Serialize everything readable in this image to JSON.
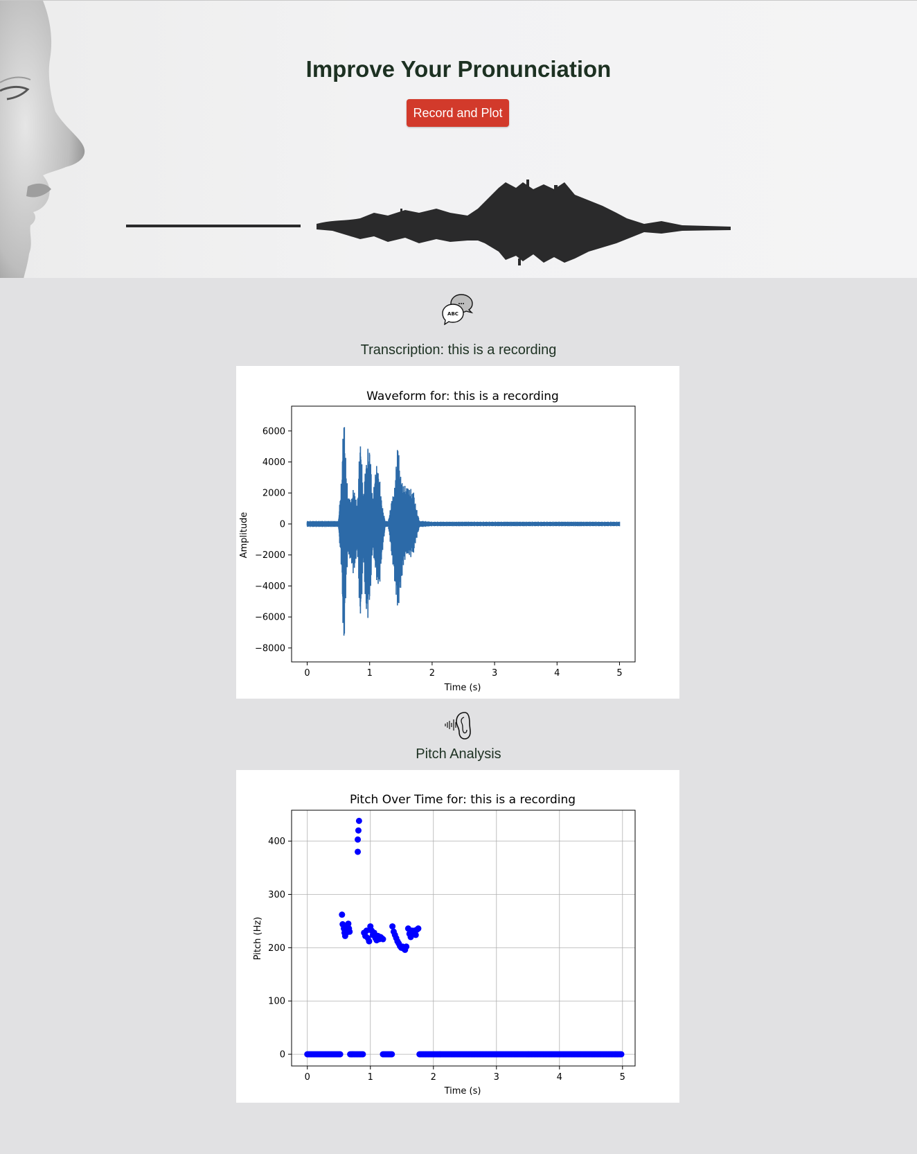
{
  "hero": {
    "title": "Improve Your Pronunciation",
    "record_button_label": "Record and Plot"
  },
  "transcription": {
    "icon": "speech-bubbles-abc-icon",
    "label": "Transcription: this is a recording"
  },
  "pitch_section": {
    "icon": "ear-soundwave-icon",
    "label": "Pitch Analysis"
  },
  "colors": {
    "accent_button": "#d23a2b",
    "heading_text": "#1d3122",
    "waveform_line": "#2c6aa8",
    "pitch_points": "#0000ff"
  },
  "chart_data": [
    {
      "type": "line",
      "title": "Waveform for: this is a recording",
      "xlabel": "Time (s)",
      "ylabel": "Amplitude",
      "xlim": [
        -0.25,
        5.25
      ],
      "ylim": [
        -8900,
        7600
      ],
      "xticks": [
        0,
        1,
        2,
        3,
        4,
        5
      ],
      "xtick_labels": [
        "0",
        "1",
        "2",
        "3",
        "4",
        "5"
      ],
      "yticks": [
        6000,
        4000,
        2000,
        0,
        -2000,
        -4000,
        -6000,
        -8000
      ],
      "ytick_labels": [
        "6000",
        "4000",
        "2000",
        "0",
        "−2000",
        "−4000",
        "−6000",
        "−8000"
      ],
      "grid": false,
      "series": [
        {
          "envelope": {
            "t": [
              0.0,
              0.5,
              0.55,
              0.58,
              0.6,
              0.62,
              0.65,
              0.7,
              0.75,
              0.8,
              0.85,
              0.9,
              0.95,
              1.0,
              1.05,
              1.1,
              1.15,
              1.2,
              1.25,
              1.3,
              1.35,
              1.4,
              1.45,
              1.5,
              1.55,
              1.6,
              1.65,
              1.7,
              1.75,
              1.8,
              1.85,
              2.0,
              5.0
            ],
            "max": [
              200,
              200,
              3000,
              6900,
              6700,
              4000,
              2000,
              1500,
              2500,
              1000,
              5900,
              2000,
              4500,
              5300,
              1500,
              4000,
              3400,
              1200,
              200,
              200,
              1500,
              2400,
              5500,
              3000,
              2500,
              2500,
              2300,
              2200,
              1000,
              200,
              200,
              150,
              150
            ],
            "min": [
              -200,
              -200,
              -3000,
              -8200,
              -7500,
              -4500,
              -2000,
              -2500,
              -3500,
              -1500,
              -6800,
              -2500,
              -6500,
              -5500,
              -1500,
              -3500,
              -4500,
              -2000,
              -200,
              -200,
              -2000,
              -3800,
              -5900,
              -4200,
              -2500,
              -2000,
              -2200,
              -2000,
              -1000,
              -200,
              -200,
              -150,
              -150
            ]
          }
        }
      ]
    },
    {
      "type": "scatter",
      "title": "Pitch Over Time for: this is a recording",
      "xlabel": "Time (s)",
      "ylabel": "Pitch (Hz)",
      "xlim": [
        -0.25,
        5.2
      ],
      "ylim": [
        -22,
        458
      ],
      "xticks": [
        0,
        1,
        2,
        3,
        4,
        5
      ],
      "xtick_labels": [
        "0",
        "1",
        "2",
        "3",
        "4",
        "5"
      ],
      "yticks": [
        0,
        100,
        200,
        300,
        400
      ],
      "ytick_labels": [
        "0",
        "100",
        "200",
        "300",
        "400"
      ],
      "grid": true,
      "series": [
        {
          "zero_ranges": [
            [
              0.0,
              0.53
            ],
            [
              0.68,
              0.88
            ],
            [
              1.2,
              1.34
            ],
            [
              1.78,
              4.98
            ]
          ],
          "points": [
            [
              0.55,
              262
            ],
            [
              0.56,
              244
            ],
            [
              0.58,
              236
            ],
            [
              0.59,
              228
            ],
            [
              0.6,
              222
            ],
            [
              0.62,
              228
            ],
            [
              0.64,
              240
            ],
            [
              0.65,
              245
            ],
            [
              0.66,
              236
            ],
            [
              0.67,
              230
            ],
            [
              0.8,
              380
            ],
            [
              0.8,
              403
            ],
            [
              0.81,
              420
            ],
            [
              0.82,
              438
            ],
            [
              0.9,
              228
            ],
            [
              0.92,
              222
            ],
            [
              0.94,
              232
            ],
            [
              0.96,
              218
            ],
            [
              0.98,
              212
            ],
            [
              1.0,
              240
            ],
            [
              1.02,
              232
            ],
            [
              1.04,
              224
            ],
            [
              1.06,
              228
            ],
            [
              1.08,
              218
            ],
            [
              1.1,
              214
            ],
            [
              1.12,
              222
            ],
            [
              1.14,
              216
            ],
            [
              1.16,
              220
            ],
            [
              1.18,
              218
            ],
            [
              1.2,
              216
            ],
            [
              1.35,
              240
            ],
            [
              1.37,
              230
            ],
            [
              1.39,
              224
            ],
            [
              1.41,
              218
            ],
            [
              1.43,
              212
            ],
            [
              1.45,
              208
            ],
            [
              1.47,
              203
            ],
            [
              1.49,
              200
            ],
            [
              1.51,
              202
            ],
            [
              1.53,
              198
            ],
            [
              1.55,
              196
            ],
            [
              1.57,
              202
            ],
            [
              1.6,
              236
            ],
            [
              1.62,
              226
            ],
            [
              1.64,
              220
            ],
            [
              1.66,
              232
            ],
            [
              1.68,
              228
            ],
            [
              1.7,
              232
            ],
            [
              1.72,
              224
            ],
            [
              1.74,
              234
            ],
            [
              1.76,
              236
            ]
          ]
        }
      ]
    }
  ]
}
